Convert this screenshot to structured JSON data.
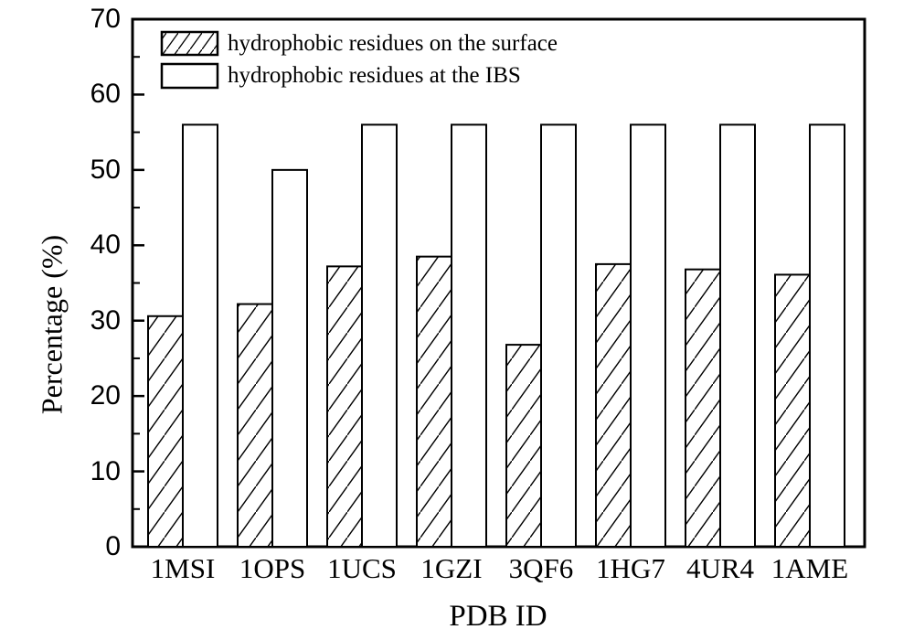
{
  "chart_data": {
    "type": "bar",
    "title": "",
    "categories": [
      "1MSI",
      "1OPS",
      "1UCS",
      "1GZI",
      "3QF6",
      "1HG7",
      "4UR4",
      "1AME"
    ],
    "series": [
      {
        "name": "hydrophobic residues on the surface",
        "style": "hatched",
        "values": [
          30.6,
          32.2,
          37.2,
          38.5,
          26.8,
          37.5,
          36.8,
          36.1
        ]
      },
      {
        "name": "hydrophobic residues at the IBS",
        "style": "open",
        "values": [
          56,
          50,
          56,
          56,
          56,
          56,
          56,
          56
        ]
      }
    ],
    "xlabel": "PDB ID",
    "ylabel": "Percentage (%)",
    "ylim": [
      0,
      70
    ],
    "y_major_ticks": [
      0,
      10,
      20,
      30,
      40,
      50,
      60,
      70
    ],
    "y_minor_step": 5,
    "grid": "off",
    "legend_position": "top-left-inside",
    "colors": {
      "line": "#000000",
      "bar_fill": "#ffffff",
      "background": "#ffffff"
    }
  }
}
